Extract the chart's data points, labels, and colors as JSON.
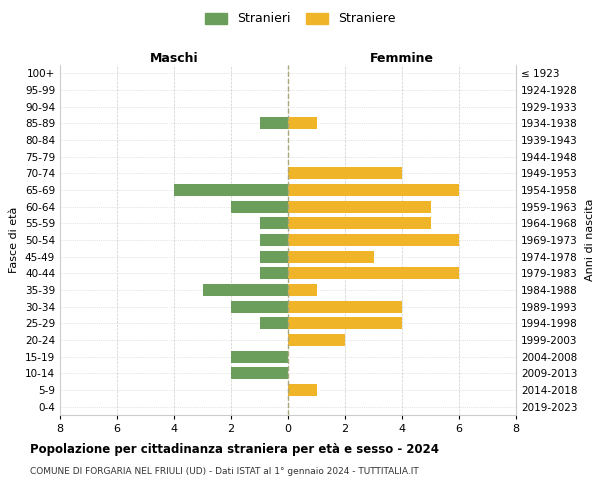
{
  "age_groups": [
    "100+",
    "95-99",
    "90-94",
    "85-89",
    "80-84",
    "75-79",
    "70-74",
    "65-69",
    "60-64",
    "55-59",
    "50-54",
    "45-49",
    "40-44",
    "35-39",
    "30-34",
    "25-29",
    "20-24",
    "15-19",
    "10-14",
    "5-9",
    "0-4"
  ],
  "birth_years": [
    "≤ 1923",
    "1924-1928",
    "1929-1933",
    "1934-1938",
    "1939-1943",
    "1944-1948",
    "1949-1953",
    "1954-1958",
    "1959-1963",
    "1964-1968",
    "1969-1973",
    "1974-1978",
    "1979-1983",
    "1984-1988",
    "1989-1993",
    "1994-1998",
    "1999-2003",
    "2004-2008",
    "2009-2013",
    "2014-2018",
    "2019-2023"
  ],
  "maschi": [
    0,
    0,
    0,
    1,
    0,
    0,
    0,
    4,
    2,
    1,
    1,
    1,
    1,
    3,
    2,
    1,
    0,
    2,
    2,
    0,
    0
  ],
  "femmine": [
    0,
    0,
    0,
    1,
    0,
    0,
    4,
    6,
    5,
    5,
    6,
    3,
    6,
    1,
    4,
    4,
    2,
    0,
    0,
    1,
    0
  ],
  "maschi_color": "#6a9e5a",
  "femmine_color": "#f0b429",
  "bg_color": "#ffffff",
  "grid_color": "#cccccc",
  "title": "Popolazione per cittadinanza straniera per età e sesso - 2024",
  "subtitle": "COMUNE DI FORGARIA NEL FRIULI (UD) - Dati ISTAT al 1° gennaio 2024 - TUTTITALIA.IT",
  "xlabel_left": "Maschi",
  "xlabel_right": "Femmine",
  "ylabel_left": "Fasce di età",
  "ylabel_right": "Anni di nascita",
  "legend_stranieri": "Stranieri",
  "legend_straniere": "Straniere",
  "xlim": 8
}
